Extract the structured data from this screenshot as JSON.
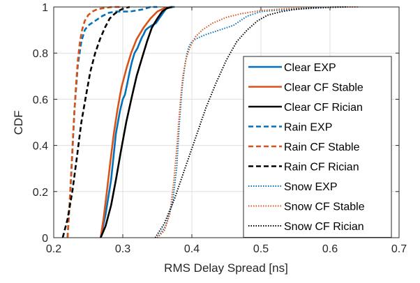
{
  "chart_data": {
    "type": "line",
    "title": "",
    "xlabel": "RMS Delay Spread [ns]",
    "ylabel": "CDF",
    "xlim": [
      0.2,
      0.7
    ],
    "ylim": [
      0,
      1
    ],
    "xticks": [
      "0.2",
      "0.3",
      "0.4",
      "0.5",
      "0.6",
      "0.7"
    ],
    "yticks": [
      "0",
      "0.2",
      "0.4",
      "0.6",
      "0.8",
      "1"
    ],
    "grid": true,
    "legend_position": "lower-right",
    "series": [
      {
        "name": "Clear EXP",
        "color": "#0072BD",
        "style": "solid",
        "x": [
          0.268,
          0.275,
          0.283,
          0.29,
          0.296,
          0.3,
          0.303,
          0.306,
          0.31,
          0.313,
          0.317,
          0.321,
          0.325,
          0.328,
          0.33,
          0.333,
          0.337,
          0.342,
          0.348,
          0.355,
          0.362,
          0.368,
          0.375
        ],
        "y": [
          0,
          0.1,
          0.25,
          0.45,
          0.55,
          0.6,
          0.62,
          0.66,
          0.72,
          0.76,
          0.8,
          0.82,
          0.85,
          0.87,
          0.88,
          0.9,
          0.91,
          0.92,
          0.93,
          0.96,
          0.99,
          1.0,
          1.0
        ]
      },
      {
        "name": "Clear CF Stable",
        "color": "#D95319",
        "style": "solid",
        "x": [
          0.268,
          0.272,
          0.277,
          0.282,
          0.287,
          0.292,
          0.298,
          0.305,
          0.312,
          0.32,
          0.33,
          0.34,
          0.35,
          0.36,
          0.37
        ],
        "y": [
          0,
          0.08,
          0.2,
          0.33,
          0.45,
          0.55,
          0.65,
          0.73,
          0.8,
          0.86,
          0.91,
          0.95,
          0.98,
          0.995,
          1.0
        ]
      },
      {
        "name": "Clear CF Rician",
        "color": "#000000",
        "style": "solid",
        "x": [
          0.268,
          0.275,
          0.283,
          0.29,
          0.297,
          0.305,
          0.313,
          0.32,
          0.328,
          0.335,
          0.342,
          0.35,
          0.357,
          0.364,
          0.372
        ],
        "y": [
          0,
          0.05,
          0.14,
          0.25,
          0.37,
          0.5,
          0.61,
          0.7,
          0.78,
          0.85,
          0.91,
          0.95,
          0.98,
          0.995,
          1.0
        ]
      },
      {
        "name": "Rain EXP",
        "color": "#0072BD",
        "style": "dashed",
        "x": [
          0.22,
          0.225,
          0.23,
          0.235,
          0.24,
          0.245,
          0.25,
          0.26,
          0.27,
          0.28,
          0.29,
          0.3,
          0.31,
          0.32,
          0.33,
          0.34,
          0.35
        ],
        "y": [
          0,
          0.25,
          0.55,
          0.75,
          0.85,
          0.9,
          0.92,
          0.94,
          0.96,
          0.975,
          0.98,
          0.98,
          0.98,
          0.985,
          0.99,
          1.0,
          1.0
        ]
      },
      {
        "name": "Rain CF Stable",
        "color": "#D95319",
        "style": "dashed",
        "x": [
          0.22,
          0.223,
          0.226,
          0.229,
          0.232,
          0.235,
          0.238,
          0.241,
          0.245,
          0.25,
          0.256,
          0.263,
          0.272,
          0.285,
          0.3
        ],
        "y": [
          0,
          0.15,
          0.32,
          0.5,
          0.65,
          0.77,
          0.85,
          0.9,
          0.94,
          0.965,
          0.98,
          0.99,
          0.995,
          1.0,
          1.0
        ]
      },
      {
        "name": "Rain CF Rician",
        "color": "#000000",
        "style": "dashed",
        "x": [
          0.213,
          0.22,
          0.227,
          0.234,
          0.24,
          0.247,
          0.253,
          0.26,
          0.267,
          0.274,
          0.281,
          0.288,
          0.295,
          0.302,
          0.31
        ],
        "y": [
          0,
          0.08,
          0.2,
          0.36,
          0.5,
          0.62,
          0.72,
          0.8,
          0.86,
          0.91,
          0.95,
          0.97,
          0.985,
          0.995,
          1.0
        ]
      },
      {
        "name": "Snow EXP",
        "color": "#0072BD",
        "style": "dotted",
        "x": [
          0.35,
          0.362,
          0.372,
          0.378,
          0.382,
          0.386,
          0.39,
          0.393,
          0.396,
          0.4,
          0.405,
          0.412,
          0.42,
          0.43,
          0.44,
          0.45,
          0.46,
          0.47,
          0.48,
          0.5,
          0.52,
          0.55,
          0.58,
          0.61,
          0.64
        ],
        "y": [
          0,
          0.05,
          0.15,
          0.3,
          0.5,
          0.65,
          0.75,
          0.8,
          0.83,
          0.85,
          0.86,
          0.87,
          0.88,
          0.89,
          0.9,
          0.91,
          0.92,
          0.94,
          0.96,
          0.98,
          0.985,
          0.99,
          0.995,
          1.0,
          1.0
        ]
      },
      {
        "name": "Snow CF Stable",
        "color": "#D95319",
        "style": "dotted",
        "x": [
          0.35,
          0.36,
          0.368,
          0.374,
          0.379,
          0.383,
          0.387,
          0.392,
          0.398,
          0.405,
          0.415,
          0.43,
          0.45,
          0.47,
          0.5,
          0.54,
          0.58,
          0.62,
          0.64
        ],
        "y": [
          0,
          0.03,
          0.1,
          0.25,
          0.42,
          0.58,
          0.7,
          0.78,
          0.83,
          0.87,
          0.9,
          0.93,
          0.955,
          0.97,
          0.985,
          0.993,
          0.997,
          1.0,
          1.0
        ]
      },
      {
        "name": "Snow CF Rician",
        "color": "#000000",
        "style": "dotted",
        "x": [
          0.347,
          0.36,
          0.375,
          0.39,
          0.405,
          0.42,
          0.435,
          0.45,
          0.465,
          0.48,
          0.495,
          0.51,
          0.53,
          0.55,
          0.575,
          0.6,
          0.625
        ],
        "y": [
          0,
          0.06,
          0.17,
          0.3,
          0.43,
          0.56,
          0.67,
          0.77,
          0.85,
          0.9,
          0.94,
          0.965,
          0.98,
          0.99,
          0.996,
          0.999,
          1.0
        ]
      }
    ]
  }
}
